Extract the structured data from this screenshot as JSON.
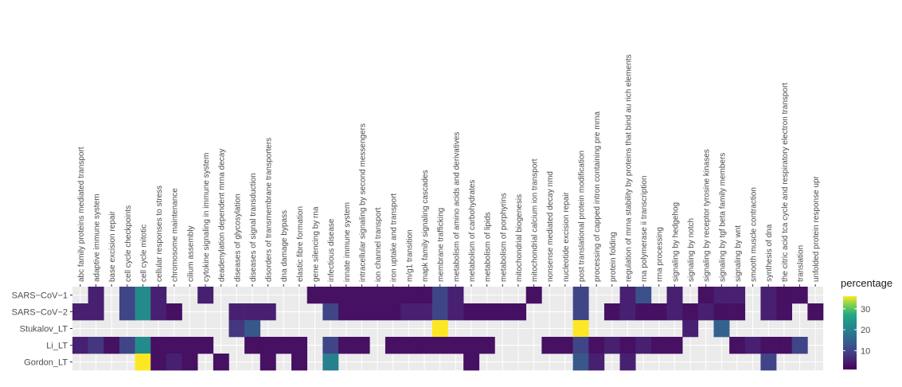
{
  "chart_data": {
    "type": "heatmap",
    "title": "",
    "xlabel": "",
    "ylabel": "",
    "legend": {
      "title": "percentage",
      "ticks": [
        10,
        20,
        30
      ],
      "range": [
        1,
        36
      ],
      "colormap": "viridis",
      "placement": "right"
    },
    "empty_color": "#ebebeb",
    "x": [
      "abc family proteins mediated transport",
      "adaptive immune system",
      "base excision repair",
      "cell cycle checkpoints",
      "cell cycle mitotic",
      "cellular responses to stress",
      "chromosome maintenance",
      "cilium assembly",
      "cytokine signaling in immune system",
      "deadenylation dependent mrna decay",
      "diseases of glycosylation",
      "diseases of signal transduction",
      "disorders of transmembrane transporters",
      "dna damage bypass",
      "elastic fibre formation",
      "gene silencing by rna",
      "infectious disease",
      "innate immune system",
      "intracellular signaling by second messengers",
      "ion channel transport",
      "iron uptake and transport",
      "m/g1 transition",
      "mapk family signaling cascades",
      "membrane trafficking",
      "metabolism of amino acids and derivatives",
      "metabolism of carbohydrates",
      "metabolism of lipids",
      "metabolism of porphyrins",
      "mitochondrial biogenesis",
      "mitochondrial calcium ion transport",
      "nonsense mediated decay nmd",
      "nucleotide excision repair",
      "post translational protein modification",
      "processing of capped intron containing pre mrna",
      "protein folding",
      "regulation of mrna stability by proteins that bind au rich elements",
      "rna polymerase ii transcription",
      "rrna processing",
      "signaling by hedgehog",
      "signaling by notch",
      "signaling by receptor tyrosine kinases",
      "signaling by tgf beta family members",
      "signaling by wnt",
      "smooth muscle contraction",
      "synthesis of dna",
      "the citric acid tca cycle and respiratory electron transport",
      "translation",
      "unfolded protein response upr"
    ],
    "y": [
      "SARS−CoV−1",
      "SARS−CoV−2",
      "Stukalov_LT",
      "Li_LT",
      "Gordon_LT"
    ],
    "values": [
      [
        null,
        5,
        null,
        10,
        22,
        5,
        null,
        null,
        5,
        null,
        null,
        null,
        null,
        null,
        null,
        3,
        3,
        3,
        3,
        3,
        3,
        3,
        3,
        10,
        5,
        null,
        null,
        null,
        null,
        3,
        null,
        null,
        10,
        null,
        null,
        5,
        12,
        null,
        5,
        null,
        3,
        5,
        5,
        null,
        5,
        3,
        3,
        null
      ],
      [
        5,
        5,
        null,
        10,
        22,
        5,
        3,
        null,
        null,
        null,
        5,
        5,
        5,
        null,
        null,
        null,
        10,
        3,
        3,
        3,
        3,
        5,
        5,
        10,
        5,
        3,
        3,
        3,
        3,
        null,
        null,
        null,
        10,
        null,
        3,
        5,
        3,
        3,
        5,
        3,
        5,
        3,
        3,
        null,
        5,
        3,
        null,
        3
      ],
      [
        null,
        null,
        null,
        null,
        null,
        null,
        null,
        null,
        null,
        null,
        8,
        13,
        null,
        null,
        null,
        null,
        null,
        null,
        null,
        null,
        null,
        null,
        null,
        36,
        null,
        null,
        null,
        null,
        null,
        null,
        null,
        null,
        36,
        null,
        null,
        null,
        null,
        null,
        null,
        5,
        null,
        15,
        null,
        null,
        null,
        null,
        null,
        null
      ],
      [
        5,
        8,
        3,
        10,
        22,
        3,
        3,
        3,
        3,
        null,
        null,
        3,
        3,
        3,
        3,
        null,
        10,
        3,
        3,
        null,
        3,
        3,
        3,
        3,
        3,
        3,
        3,
        null,
        null,
        null,
        3,
        3,
        10,
        3,
        5,
        3,
        5,
        3,
        3,
        null,
        null,
        null,
        3,
        5,
        3,
        3,
        10,
        null
      ],
      [
        null,
        null,
        null,
        null,
        36,
        3,
        5,
        3,
        null,
        3,
        null,
        null,
        3,
        null,
        3,
        null,
        20,
        null,
        null,
        null,
        null,
        null,
        null,
        null,
        null,
        3,
        null,
        null,
        null,
        null,
        null,
        null,
        13,
        5,
        null,
        5,
        null,
        null,
        null,
        null,
        null,
        null,
        null,
        null,
        10,
        null,
        null,
        null
      ]
    ]
  }
}
